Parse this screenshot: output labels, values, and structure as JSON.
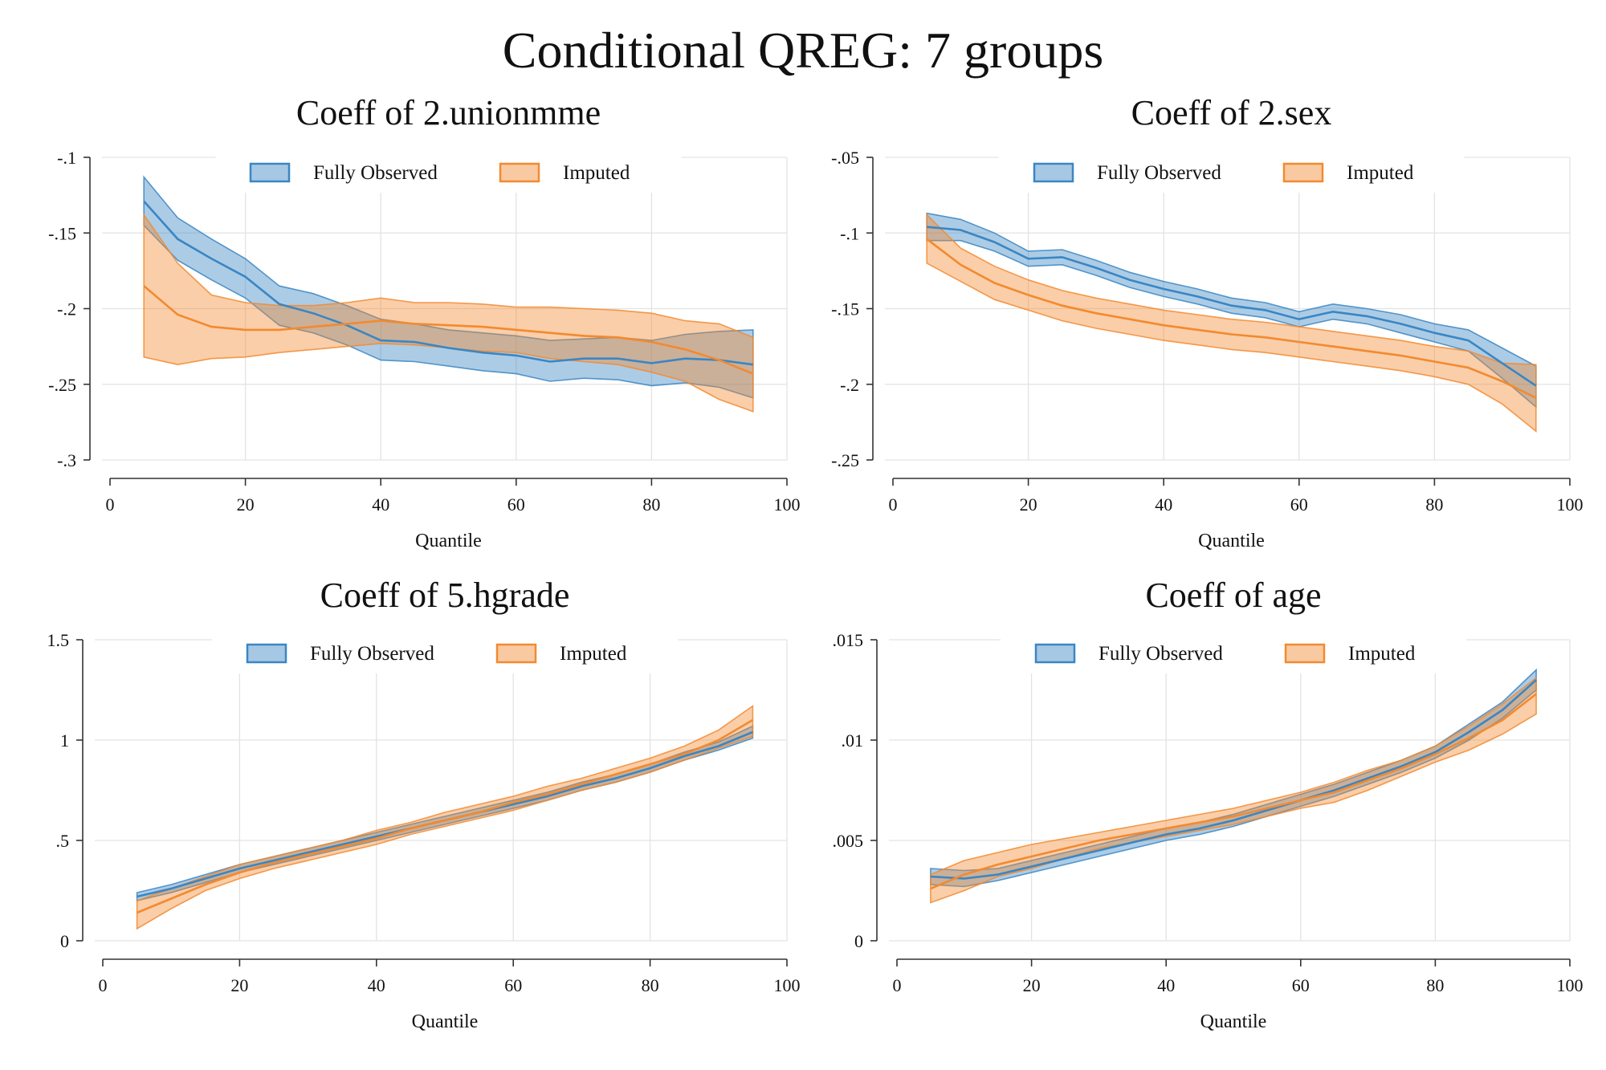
{
  "figure_title": "Conditional QREG: 7 groups",
  "colors": {
    "fully_observed": "#3a86c4",
    "imputed": "#f28a30"
  },
  "chart_data": [
    {
      "type": "area",
      "title": "Coeff of 2.unionmme",
      "xlabel": "Quantile",
      "ylabel": "",
      "xlim": [
        0,
        100
      ],
      "ylim": [
        -0.3,
        -0.1
      ],
      "xticks": [
        0,
        20,
        40,
        60,
        80,
        100
      ],
      "xtick_labels": [
        "0",
        "20",
        "40",
        "60",
        "80",
        "100"
      ],
      "yticks": [
        -0.3,
        -0.25,
        -0.2,
        -0.15,
        -0.1
      ],
      "ytick_labels": [
        "-.3",
        "-.25",
        "-.2",
        "-.15",
        "-.1"
      ],
      "grid": true,
      "legend_position": "top",
      "x": [
        5,
        10,
        15,
        20,
        25,
        30,
        35,
        40,
        45,
        50,
        55,
        60,
        65,
        70,
        75,
        80,
        85,
        90,
        95
      ],
      "series": [
        {
          "name": "Fully Observed",
          "estimate": [
            -0.129,
            -0.154,
            -0.167,
            -0.179,
            -0.197,
            -0.203,
            -0.211,
            -0.221,
            -0.222,
            -0.226,
            -0.229,
            -0.231,
            -0.235,
            -0.233,
            -0.233,
            -0.236,
            -0.233,
            -0.234,
            -0.237
          ],
          "upper": [
            -0.113,
            -0.14,
            -0.154,
            -0.167,
            -0.185,
            -0.19,
            -0.198,
            -0.207,
            -0.21,
            -0.214,
            -0.216,
            -0.218,
            -0.221,
            -0.22,
            -0.219,
            -0.221,
            -0.217,
            -0.215,
            -0.214
          ],
          "lower": [
            -0.145,
            -0.168,
            -0.181,
            -0.193,
            -0.211,
            -0.216,
            -0.224,
            -0.234,
            -0.235,
            -0.238,
            -0.241,
            -0.243,
            -0.248,
            -0.246,
            -0.247,
            -0.251,
            -0.249,
            -0.252,
            -0.259
          ]
        },
        {
          "name": "Imputed",
          "estimate": [
            -0.185,
            -0.204,
            -0.212,
            -0.214,
            -0.214,
            -0.212,
            -0.21,
            -0.208,
            -0.21,
            -0.211,
            -0.212,
            -0.214,
            -0.216,
            -0.218,
            -0.219,
            -0.222,
            -0.227,
            -0.234,
            -0.243
          ],
          "upper": [
            -0.138,
            -0.17,
            -0.191,
            -0.196,
            -0.198,
            -0.198,
            -0.196,
            -0.193,
            -0.196,
            -0.196,
            -0.197,
            -0.199,
            -0.199,
            -0.2,
            -0.201,
            -0.203,
            -0.208,
            -0.21,
            -0.219
          ],
          "lower": [
            -0.232,
            -0.237,
            -0.233,
            -0.232,
            -0.229,
            -0.227,
            -0.225,
            -0.223,
            -0.224,
            -0.226,
            -0.228,
            -0.229,
            -0.233,
            -0.235,
            -0.237,
            -0.242,
            -0.248,
            -0.26,
            -0.268
          ]
        }
      ]
    },
    {
      "type": "area",
      "title": "Coeff of 2.sex",
      "xlabel": "Quantile",
      "ylabel": "",
      "xlim": [
        0,
        100
      ],
      "ylim": [
        -0.25,
        -0.05
      ],
      "xticks": [
        0,
        20,
        40,
        60,
        80,
        100
      ],
      "xtick_labels": [
        "0",
        "20",
        "40",
        "60",
        "80",
        "100"
      ],
      "yticks": [
        -0.25,
        -0.2,
        -0.15,
        -0.1,
        -0.05
      ],
      "ytick_labels": [
        "-.25",
        "-.2",
        "-.15",
        "-.1",
        "-.05"
      ],
      "grid": true,
      "legend_position": "top",
      "x": [
        5,
        10,
        15,
        20,
        25,
        30,
        35,
        40,
        45,
        50,
        55,
        60,
        65,
        70,
        75,
        80,
        85,
        90,
        95
      ],
      "series": [
        {
          "name": "Fully Observed",
          "estimate": [
            -0.096,
            -0.098,
            -0.106,
            -0.117,
            -0.116,
            -0.123,
            -0.131,
            -0.137,
            -0.142,
            -0.148,
            -0.151,
            -0.157,
            -0.152,
            -0.155,
            -0.16,
            -0.166,
            -0.171,
            -0.186,
            -0.201
          ],
          "upper": [
            -0.087,
            -0.091,
            -0.1,
            -0.112,
            -0.111,
            -0.118,
            -0.126,
            -0.132,
            -0.137,
            -0.143,
            -0.146,
            -0.152,
            -0.147,
            -0.15,
            -0.154,
            -0.16,
            -0.164,
            -0.176,
            -0.188
          ],
          "lower": [
            -0.105,
            -0.105,
            -0.112,
            -0.122,
            -0.121,
            -0.128,
            -0.136,
            -0.142,
            -0.147,
            -0.153,
            -0.156,
            -0.162,
            -0.157,
            -0.16,
            -0.166,
            -0.172,
            -0.178,
            -0.196,
            -0.215
          ]
        },
        {
          "name": "Imputed",
          "estimate": [
            -0.104,
            -0.121,
            -0.133,
            -0.141,
            -0.148,
            -0.153,
            -0.157,
            -0.161,
            -0.164,
            -0.167,
            -0.169,
            -0.172,
            -0.175,
            -0.178,
            -0.181,
            -0.185,
            -0.189,
            -0.198,
            -0.209
          ],
          "upper": [
            -0.088,
            -0.11,
            -0.122,
            -0.131,
            -0.138,
            -0.143,
            -0.147,
            -0.151,
            -0.154,
            -0.157,
            -0.159,
            -0.162,
            -0.165,
            -0.168,
            -0.171,
            -0.175,
            -0.178,
            -0.186,
            -0.187
          ],
          "lower": [
            -0.12,
            -0.132,
            -0.144,
            -0.151,
            -0.158,
            -0.163,
            -0.167,
            -0.171,
            -0.174,
            -0.177,
            -0.179,
            -0.182,
            -0.185,
            -0.188,
            -0.191,
            -0.195,
            -0.2,
            -0.213,
            -0.231
          ]
        }
      ]
    },
    {
      "type": "area",
      "title": "Coeff of 5.hgrade",
      "xlabel": "Quantile",
      "ylabel": "",
      "xlim": [
        0,
        100
      ],
      "ylim": [
        0,
        1.5
      ],
      "xticks": [
        0,
        20,
        40,
        60,
        80,
        100
      ],
      "xtick_labels": [
        "0",
        "20",
        "40",
        "60",
        "80",
        "100"
      ],
      "yticks": [
        0,
        0.5,
        1,
        1.5
      ],
      "ytick_labels": [
        "0",
        ".5",
        "1",
        "1.5"
      ],
      "grid": true,
      "legend_position": "top",
      "x": [
        5,
        10,
        15,
        20,
        25,
        30,
        35,
        40,
        45,
        50,
        55,
        60,
        65,
        70,
        75,
        80,
        85,
        90,
        95
      ],
      "series": [
        {
          "name": "Fully Observed",
          "estimate": [
            0.22,
            0.26,
            0.31,
            0.36,
            0.4,
            0.44,
            0.48,
            0.52,
            0.56,
            0.6,
            0.64,
            0.68,
            0.72,
            0.77,
            0.81,
            0.86,
            0.92,
            0.97,
            1.04
          ],
          "upper": [
            0.24,
            0.28,
            0.33,
            0.38,
            0.42,
            0.46,
            0.5,
            0.54,
            0.58,
            0.62,
            0.66,
            0.7,
            0.74,
            0.79,
            0.83,
            0.88,
            0.94,
            0.99,
            1.07
          ],
          "lower": [
            0.2,
            0.24,
            0.29,
            0.34,
            0.38,
            0.42,
            0.46,
            0.5,
            0.54,
            0.58,
            0.62,
            0.66,
            0.7,
            0.75,
            0.79,
            0.84,
            0.9,
            0.95,
            1.01
          ]
        },
        {
          "name": "Imputed",
          "estimate": [
            0.14,
            0.21,
            0.28,
            0.34,
            0.39,
            0.43,
            0.47,
            0.51,
            0.56,
            0.6,
            0.64,
            0.69,
            0.73,
            0.78,
            0.83,
            0.88,
            0.93,
            1.0,
            1.1
          ],
          "upper": [
            0.2,
            0.26,
            0.32,
            0.38,
            0.42,
            0.46,
            0.5,
            0.55,
            0.59,
            0.64,
            0.68,
            0.72,
            0.77,
            0.81,
            0.86,
            0.91,
            0.97,
            1.05,
            1.17
          ],
          "lower": [
            0.06,
            0.16,
            0.25,
            0.31,
            0.36,
            0.4,
            0.44,
            0.48,
            0.53,
            0.57,
            0.61,
            0.65,
            0.7,
            0.75,
            0.79,
            0.84,
            0.9,
            0.96,
            1.02
          ]
        }
      ]
    },
    {
      "type": "area",
      "title": "Coeff of age",
      "xlabel": "Quantile",
      "ylabel": "",
      "xlim": [
        0,
        100
      ],
      "ylim": [
        0,
        0.015
      ],
      "xticks": [
        0,
        20,
        40,
        60,
        80,
        100
      ],
      "xtick_labels": [
        "0",
        "20",
        "40",
        "60",
        "80",
        "100"
      ],
      "yticks": [
        0,
        0.005,
        0.01,
        0.015
      ],
      "ytick_labels": [
        "0",
        ".005",
        ".01",
        ".015"
      ],
      "grid": true,
      "legend_position": "top",
      "x": [
        5,
        10,
        15,
        20,
        25,
        30,
        35,
        40,
        45,
        50,
        55,
        60,
        65,
        70,
        75,
        80,
        85,
        90,
        95
      ],
      "series": [
        {
          "name": "Fully Observed",
          "estimate": [
            0.0032,
            0.0031,
            0.0033,
            0.0037,
            0.0041,
            0.0045,
            0.0049,
            0.0053,
            0.0056,
            0.006,
            0.0065,
            0.007,
            0.0075,
            0.0081,
            0.0087,
            0.0094,
            0.0104,
            0.0115,
            0.013
          ],
          "upper": [
            0.0036,
            0.0035,
            0.0036,
            0.004,
            0.0044,
            0.0048,
            0.0052,
            0.0056,
            0.0059,
            0.0063,
            0.0068,
            0.0073,
            0.0078,
            0.0084,
            0.009,
            0.0097,
            0.0108,
            0.0119,
            0.0135
          ],
          "lower": [
            0.0028,
            0.0027,
            0.003,
            0.0034,
            0.0038,
            0.0042,
            0.0046,
            0.005,
            0.0053,
            0.0057,
            0.0062,
            0.0067,
            0.0072,
            0.0078,
            0.0084,
            0.0091,
            0.01,
            0.0111,
            0.0125
          ]
        },
        {
          "name": "Imputed",
          "estimate": [
            0.0026,
            0.0033,
            0.0038,
            0.0042,
            0.0046,
            0.005,
            0.0053,
            0.0056,
            0.0059,
            0.0062,
            0.0066,
            0.007,
            0.0074,
            0.008,
            0.0086,
            0.0093,
            0.0101,
            0.011,
            0.0123
          ],
          "upper": [
            0.0033,
            0.004,
            0.0044,
            0.0048,
            0.0051,
            0.0054,
            0.0057,
            0.006,
            0.0063,
            0.0066,
            0.007,
            0.0074,
            0.0079,
            0.0085,
            0.009,
            0.0097,
            0.0107,
            0.0118,
            0.0131
          ],
          "lower": [
            0.0019,
            0.0025,
            0.0032,
            0.0036,
            0.0041,
            0.0046,
            0.0049,
            0.0052,
            0.0055,
            0.0058,
            0.0062,
            0.0066,
            0.0069,
            0.0075,
            0.0082,
            0.0089,
            0.0095,
            0.0103,
            0.0113
          ]
        }
      ]
    }
  ]
}
